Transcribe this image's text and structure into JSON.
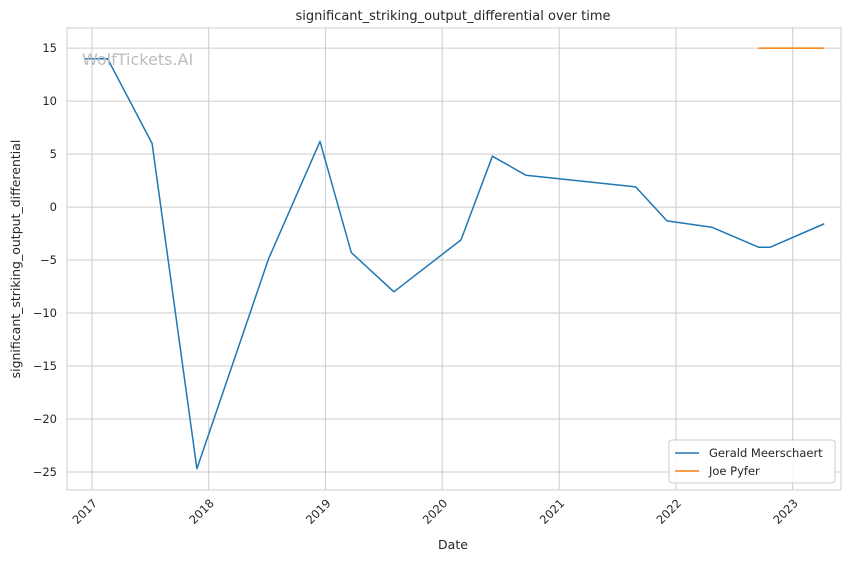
{
  "chart_data": {
    "type": "line",
    "title": "significant_striking_output_differential over time",
    "xlabel": "Date",
    "ylabel": "significant_striking_output_differential",
    "watermark": "WolfTickets.AI",
    "xlim": [
      "2016-10-15",
      "2023-06-01"
    ],
    "ylim": [
      -26.7,
      16.9
    ],
    "x_ticks": [
      "2017",
      "2018",
      "2019",
      "2020",
      "2021",
      "2022",
      "2023"
    ],
    "y_ticks": [
      15,
      10,
      5,
      0,
      -5,
      -10,
      -15,
      -20,
      -25
    ],
    "y_tick_labels": [
      "15",
      "10",
      "5",
      "0",
      "−5",
      "−10",
      "−15",
      "−20",
      "−25"
    ],
    "grid": true,
    "legend_position": "lower-right",
    "series": [
      {
        "name": "Gerald Meerschaert",
        "color": "#1f77b4",
        "points": [
          [
            "2016-12-09",
            14.0
          ],
          [
            "2017-02-19",
            14.0
          ],
          [
            "2017-07-08",
            6.0
          ],
          [
            "2017-11-25",
            -24.7
          ],
          [
            "2018-07-07",
            -4.9
          ],
          [
            "2018-12-15",
            6.2
          ],
          [
            "2019-03-23",
            -4.3
          ],
          [
            "2019-08-03",
            -8.0
          ],
          [
            "2020-02-29",
            -3.1
          ],
          [
            "2020-06-06",
            4.8
          ],
          [
            "2020-09-19",
            3.0
          ],
          [
            "2021-08-28",
            1.9
          ],
          [
            "2021-12-04",
            -1.3
          ],
          [
            "2022-04-23",
            -1.9
          ],
          [
            "2022-09-17",
            -3.8
          ],
          [
            "2022-10-22",
            -3.8
          ],
          [
            "2023-04-08",
            -1.6
          ]
        ]
      },
      {
        "name": "Joe Pyfer",
        "color": "#ff7f0e",
        "points": [
          [
            "2022-09-17",
            15.0
          ],
          [
            "2023-04-08",
            15.0
          ]
        ]
      }
    ]
  }
}
